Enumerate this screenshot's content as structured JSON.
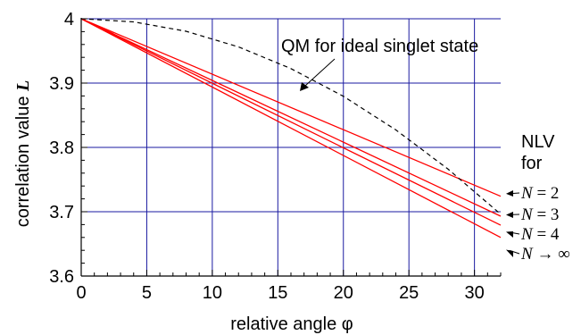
{
  "chart_data": {
    "type": "line",
    "xlabel": "relative angle φ",
    "ylabel_text": "correlation value",
    "ylabel_symbol": "L",
    "xlim": [
      0,
      32
    ],
    "ylim": [
      3.6,
      4.0
    ],
    "grid": true,
    "colors": {
      "grid": "#1a1aa0",
      "nlv": "#ff0000",
      "qm": "#000000",
      "axis": "#000000"
    },
    "x_ticks": [
      "0",
      "5",
      "10",
      "15",
      "20",
      "25",
      "30"
    ],
    "y_ticks": [
      "3.6",
      "3.7",
      "3.8",
      "3.9",
      "4"
    ],
    "nlv_header": [
      "NLV",
      "for"
    ],
    "series": [
      {
        "label": "N = 2",
        "style": "solid",
        "x": [
          0,
          32
        ],
        "y": [
          4.0,
          3.724
        ]
      },
      {
        "label": "N = 3",
        "style": "solid",
        "x": [
          0,
          32
        ],
        "y": [
          4.0,
          3.693
        ]
      },
      {
        "label": "N = 4",
        "style": "solid",
        "x": [
          0,
          32
        ],
        "y": [
          4.0,
          3.679
        ]
      },
      {
        "label": "N → ∞",
        "style": "solid",
        "x": [
          0,
          32
        ],
        "y": [
          4.0,
          3.66
        ]
      },
      {
        "label": "QM for ideal singlet state",
        "style": "dashed",
        "x": [
          0,
          4,
          8,
          12,
          16,
          20,
          24,
          28,
          32
        ],
        "y": [
          4.0,
          3.9951,
          3.9805,
          3.9563,
          3.9225,
          3.8794,
          3.8272,
          3.766,
          3.6961
        ]
      }
    ]
  }
}
